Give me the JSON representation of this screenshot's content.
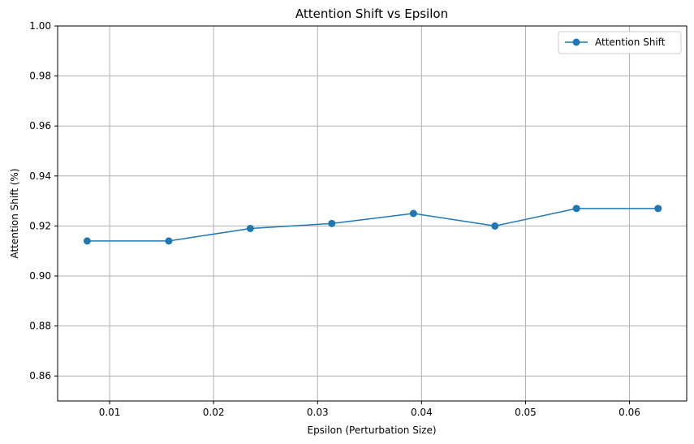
{
  "chart_data": {
    "type": "line",
    "title": "Attention Shift vs Epsilon",
    "xlabel": "Epsilon (Perturbation Size)",
    "ylabel": "Attention Shift (%)",
    "xlim": [
      0.005,
      0.0655
    ],
    "ylim": [
      0.85,
      1.0
    ],
    "xticks": [
      0.01,
      0.02,
      0.03,
      0.04,
      0.05,
      0.06
    ],
    "xtick_labels": [
      "0.01",
      "0.02",
      "0.03",
      "0.04",
      "0.05",
      "0.06"
    ],
    "yticks": [
      0.86,
      0.88,
      0.9,
      0.92,
      0.94,
      0.96,
      0.98,
      1.0
    ],
    "ytick_labels": [
      "0.86",
      "0.88",
      "0.90",
      "0.92",
      "0.94",
      "0.96",
      "0.98",
      "1.00"
    ],
    "grid": true,
    "legend_position": "top-right",
    "series": [
      {
        "name": "Attention Shift",
        "color": "#1f77b4",
        "marker": "circle",
        "x": [
          0.00784,
          0.01569,
          0.02353,
          0.03137,
          0.03922,
          0.04706,
          0.0549,
          0.06275
        ],
        "y": [
          0.914,
          0.914,
          0.919,
          0.921,
          0.925,
          0.92,
          0.927,
          0.927
        ]
      }
    ]
  }
}
